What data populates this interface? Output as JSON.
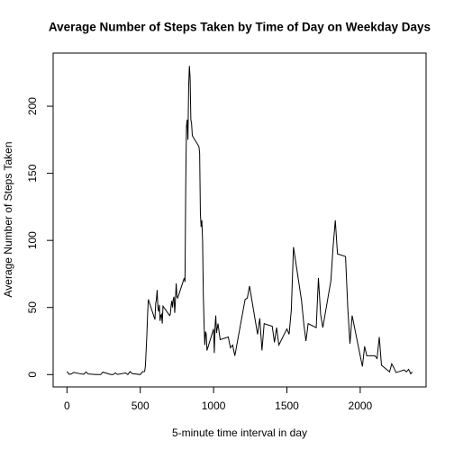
{
  "chart_data": {
    "type": "line",
    "title": "Average Number of Steps Taken by Time of Day on Weekday Days",
    "xlabel": "5-minute time interval in day",
    "ylabel": "Average Number of Steps Taken",
    "color": "#000000",
    "x": [
      0,
      15,
      30,
      45,
      100,
      115,
      130,
      145,
      200,
      215,
      230,
      245,
      300,
      315,
      330,
      345,
      400,
      415,
      430,
      445,
      500,
      515,
      530,
      535,
      540,
      545,
      550,
      555,
      600,
      605,
      610,
      615,
      620,
      625,
      630,
      635,
      640,
      645,
      650,
      655,
      700,
      705,
      710,
      715,
      720,
      725,
      730,
      735,
      740,
      745,
      750,
      755,
      800,
      805,
      810,
      815,
      820,
      825,
      830,
      835,
      840,
      845,
      850,
      855,
      900,
      905,
      910,
      915,
      920,
      925,
      930,
      935,
      940,
      945,
      950,
      955,
      1000,
      1005,
      1010,
      1015,
      1020,
      1030,
      1045,
      1100,
      1115,
      1130,
      1145,
      1200,
      1215,
      1230,
      1245,
      1300,
      1315,
      1330,
      1345,
      1400,
      1415,
      1430,
      1445,
      1500,
      1515,
      1530,
      1545,
      1600,
      1615,
      1630,
      1645,
      1700,
      1715,
      1730,
      1745,
      1800,
      1815,
      1830,
      1845,
      1900,
      1915,
      1930,
      1945,
      2000,
      2015,
      2030,
      2045,
      2100,
      2115,
      2130,
      2145,
      2200,
      2215,
      2230,
      2245,
      2300,
      2315,
      2330,
      2345,
      2355
    ],
    "values": [
      2.3,
      0.2,
      0.4,
      1.6,
      0.4,
      0.3,
      2,
      0.4,
      0,
      0,
      0,
      1.8,
      0,
      0,
      1.2,
      0.1,
      1.2,
      0,
      2.2,
      0.8,
      0,
      2.1,
      2.3,
      6.5,
      18,
      30,
      45,
      56,
      41,
      53,
      56,
      63,
      50,
      47,
      52,
      40,
      44,
      45,
      38,
      51,
      44,
      45,
      51,
      55,
      50,
      56,
      58,
      46,
      56,
      68,
      58,
      57,
      72,
      69,
      140,
      185,
      190,
      175,
      215,
      230,
      221,
      190,
      187,
      178,
      170,
      165,
      120,
      110,
      115,
      100,
      60,
      38,
      22,
      32,
      30,
      18,
      34,
      16,
      36,
      44,
      31,
      38,
      26,
      28,
      20,
      22,
      14,
      47,
      56,
      57,
      66,
      30,
      42,
      18,
      38,
      36,
      24,
      35,
      22,
      34,
      30,
      48,
      95,
      55,
      38,
      25,
      38,
      35,
      72,
      45,
      35,
      70,
      95,
      115,
      90,
      88,
      50,
      23,
      44,
      14,
      6,
      21,
      14,
      14,
      12,
      28,
      7,
      2,
      8,
      5,
      1.5,
      3.5,
      2,
      3.9,
      0.6,
      2
    ],
    "xlim": [
      -94.2,
      2449.2
    ],
    "ylim": [
      -9.2,
      239.6
    ],
    "xticks": [
      0,
      500,
      1000,
      1500,
      2000
    ],
    "yticks": [
      0,
      50,
      100,
      150,
      200
    ]
  }
}
